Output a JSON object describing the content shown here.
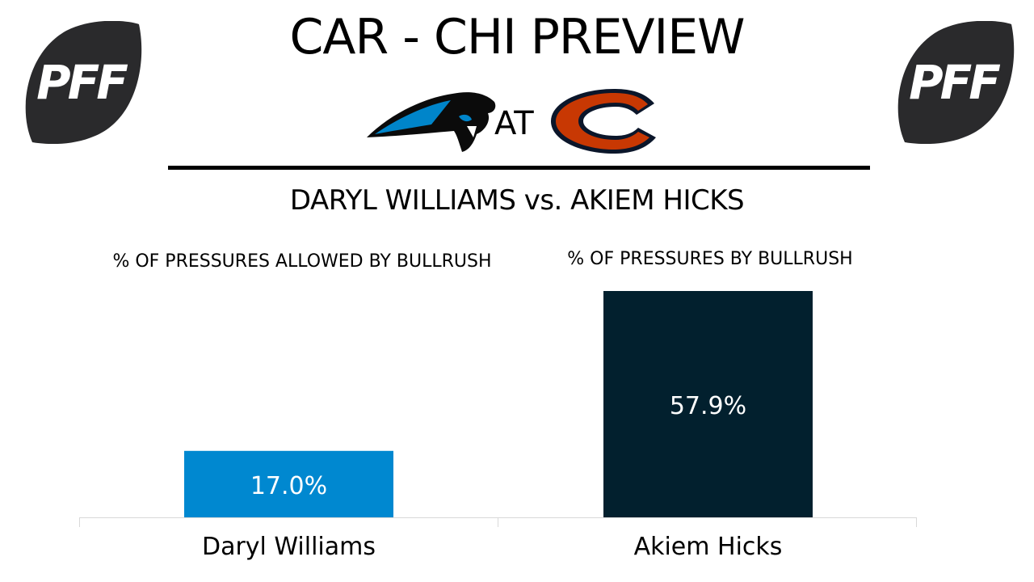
{
  "header": {
    "title": "CAR - CHI PREVIEW",
    "at_label": "AT",
    "logo_text_left": "PFF",
    "logo_text_right": "PFF"
  },
  "subtitle": "DARYL WILLIAMS vs. AKIEM HICKS",
  "colors": {
    "williams_bar": "#0088d0",
    "hicks_bar": "#02202e",
    "pff_logo": "#2a2a2c",
    "bears_orange": "#c83803",
    "bears_navy": "#0b162a",
    "panthers_blue": "#0085ca"
  },
  "chart_data": [
    {
      "type": "bar",
      "title": "% OF PRESSURES ALLOWED BY BULLRUSH",
      "categories": [
        "Daryl Williams"
      ],
      "values": [
        17.0
      ],
      "data_labels": [
        "17.0%"
      ],
      "ylim": [
        0,
        57.9
      ]
    },
    {
      "type": "bar",
      "title": "% OF PRESSURES BY BULLRUSH",
      "categories": [
        "Akiem Hicks"
      ],
      "values": [
        57.9
      ],
      "data_labels": [
        "57.9%"
      ],
      "ylim": [
        0,
        57.9
      ]
    }
  ]
}
